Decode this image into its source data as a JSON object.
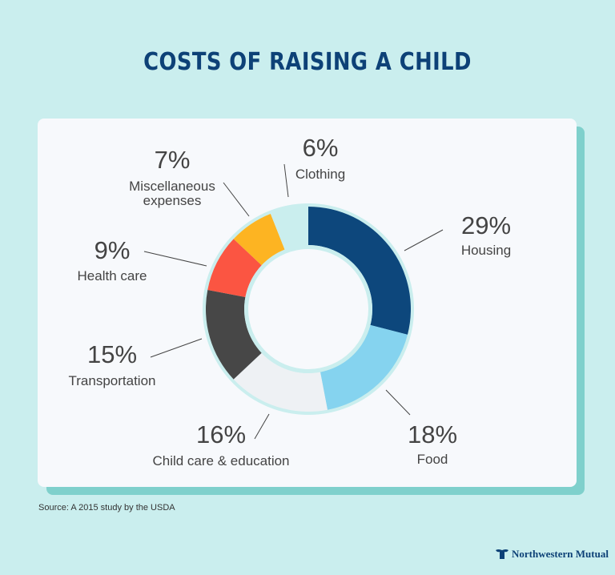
{
  "chart_data": {
    "type": "pie",
    "title": "COSTS OF RAISING A CHILD",
    "donut": true,
    "slices": [
      {
        "label": "Housing",
        "value": 29,
        "pct_label": "29%",
        "color": "#0d477c"
      },
      {
        "label": "Food",
        "value": 18,
        "pct_label": "18%",
        "color": "#85d3ef"
      },
      {
        "label": "Child care & education",
        "value": 16,
        "pct_label": "16%",
        "color": "#eef1f4"
      },
      {
        "label": "Transportation",
        "value": 15,
        "pct_label": "15%",
        "color": "#474747"
      },
      {
        "label": "Health care",
        "value": 9,
        "pct_label": "9%",
        "color": "#fb5542"
      },
      {
        "label": "Miscellaneous expenses",
        "value": 7,
        "pct_label": "7%",
        "color": "#fdb422"
      },
      {
        "label": "Clothing",
        "value": 6,
        "pct_label": "6%",
        "color": "#caeeee"
      }
    ]
  },
  "source": "Source: A 2015 study by the USDA",
  "brand": "Northwestern Mutual",
  "colors": {
    "background": "#caeeee",
    "title": "#0d4177",
    "card": "#f7f9fc",
    "card_shadow": "#7fd0cc"
  }
}
